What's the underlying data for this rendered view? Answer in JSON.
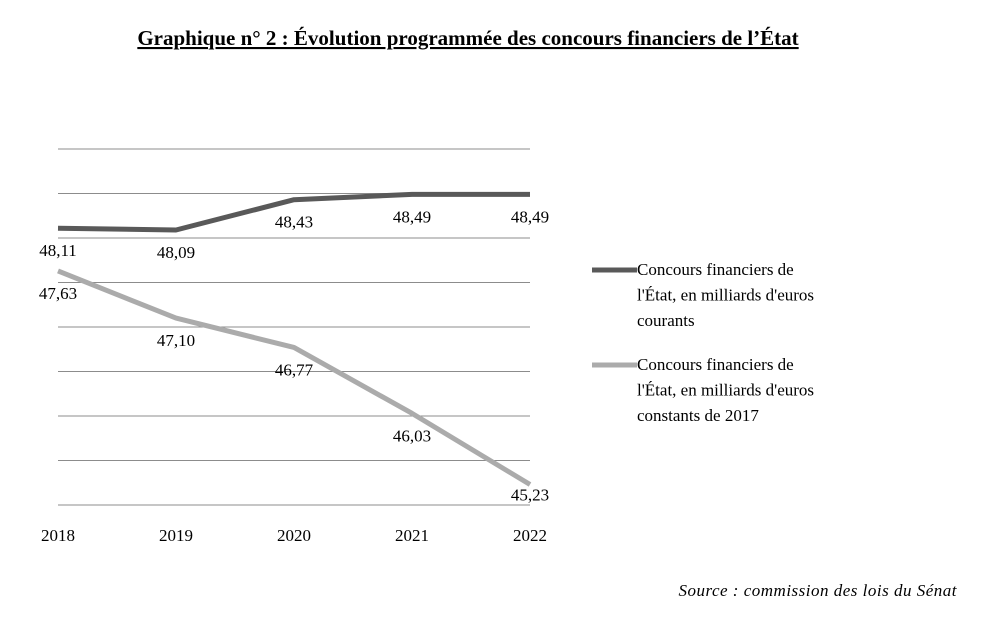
{
  "chart_data": {
    "type": "line",
    "title": "Graphique n° 2 : Évolution programmée des concours financiers de l’État",
    "categories": [
      "2018",
      "2019",
      "2020",
      "2021",
      "2022"
    ],
    "ylim": [
      45,
      49
    ],
    "grid": true,
    "legend": "right",
    "series": [
      {
        "name": "Concours financiers de l'État, en milliards d'euros courants",
        "legend_lines": [
          "Concours financiers de",
          "l'État, en milliards d'euros",
          "courants"
        ],
        "values": [
          48.11,
          48.09,
          48.43,
          48.49,
          48.49
        ],
        "labels": [
          "48,11",
          "48,09",
          "48,43",
          "48,49",
          "48,49"
        ],
        "color": "#595959"
      },
      {
        "name": "Concours financiers de l'État, en milliards d'euros constants de 2017",
        "legend_lines": [
          "Concours financiers de",
          "l'État, en milliards d'euros",
          "constants de 2017"
        ],
        "values": [
          47.63,
          47.1,
          46.77,
          46.03,
          45.23
        ],
        "labels": [
          "47,63",
          "47,10",
          "46,77",
          "46,03",
          "45,23"
        ],
        "color": "#ababab"
      }
    ],
    "source": "Source : commission des lois du Sénat"
  }
}
